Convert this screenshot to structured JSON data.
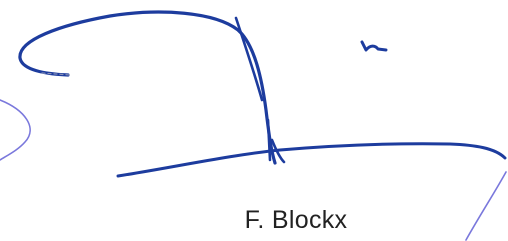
{
  "signature": {
    "name": "F. Blockx"
  }
}
